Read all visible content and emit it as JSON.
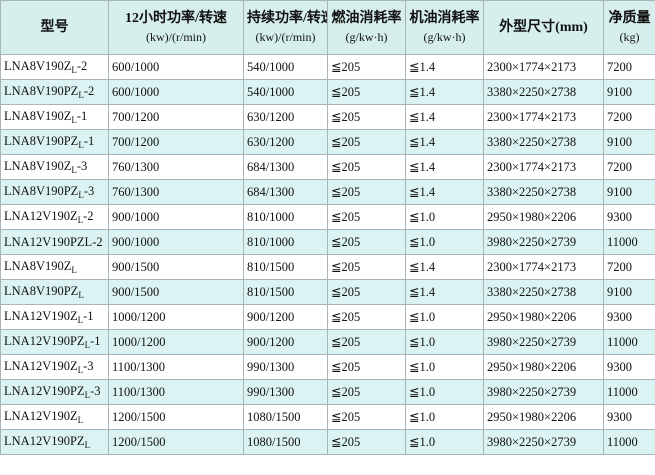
{
  "table": {
    "header": [
      [
        "型号"
      ],
      [
        "12小时功率/转速",
        "(kw)/(r/min)"
      ],
      [
        "持续功率/转速",
        "(kw)/(r/min)"
      ],
      [
        "燃油消耗率",
        "(g/kw·h)"
      ],
      [
        "机油消耗率",
        "(g/kw·h)"
      ],
      [
        "外型尺寸(mm)"
      ],
      [
        "净质量",
        "(kg)"
      ]
    ],
    "rows": [
      [
        {
          "base": "LNA8V190Z",
          "sub": "L",
          "suffix": "-2"
        },
        "600/1000",
        "540/1000",
        "≦205",
        "≦1.4",
        "2300×1774×2173",
        7200
      ],
      [
        {
          "base": "LNA8V190PZ",
          "sub": "L",
          "suffix": "-2"
        },
        "600/1000",
        "540/1000",
        "≦205",
        "≦1.4",
        "3380×2250×2738",
        9100
      ],
      [
        {
          "base": "LNA8V190Z",
          "sub": "L",
          "suffix": "-1"
        },
        "700/1200",
        "630/1200",
        "≦205",
        "≦1.4",
        "2300×1774×2173",
        7200
      ],
      [
        {
          "base": "LNA8V190PZ",
          "sub": "L",
          "suffix": "-1"
        },
        "700/1200",
        "630/1200",
        "≦205",
        "≦1.4",
        "3380×2250×2738",
        9100
      ],
      [
        {
          "base": "LNA8V190Z",
          "sub": "L",
          "suffix": "-3"
        },
        "760/1300",
        "684/1300",
        "≦205",
        "≦1.4",
        "2300×1774×2173",
        7200
      ],
      [
        {
          "base": "LNA8V190PZ",
          "sub": "L",
          "suffix": "-3"
        },
        "760/1300",
        "684/1300",
        "≦205",
        "≦1.4",
        "3380×2250×2738",
        9100
      ],
      [
        {
          "base": "LNA12V190Z",
          "sub": "L",
          "suffix": "-2"
        },
        "900/1000",
        "810/1000",
        "≦205",
        "≦1.0",
        "2950×1980×2206",
        9300
      ],
      [
        {
          "base": "LNA12V190PZL-2"
        },
        "900/1000",
        "810/1000",
        "≦205",
        "≦1.0",
        "3980×2250×2739",
        11000
      ],
      [
        {
          "base": "LNA8V190Z",
          "sub": "L"
        },
        "900/1500",
        "810/1500",
        "≦205",
        "≦1.4",
        "2300×1774×2173",
        7200
      ],
      [
        {
          "base": "LNA8V190PZ",
          "sub": "L"
        },
        "900/1500",
        "810/1500",
        "≦205",
        "≦1.4",
        "3380×2250×2738",
        9100
      ],
      [
        {
          "base": "LNA12V190Z",
          "sub": "L",
          "suffix": "-1"
        },
        "1000/1200",
        "900/1200",
        "≦205",
        "≦1.0",
        "2950×1980×2206",
        9300
      ],
      [
        {
          "base": "LNA12V190PZ",
          "sub": "L",
          "suffix": "-1"
        },
        "1000/1200",
        "900/1200",
        "≦205",
        "≦1.0",
        "3980×2250×2739",
        11000
      ],
      [
        {
          "base": "LNA12V190Z",
          "sub": "L",
          "suffix": "-3"
        },
        "1100/1300",
        "990/1300",
        "≦205",
        "≦1.0",
        "2950×1980×2206",
        9300
      ],
      [
        {
          "base": "LNA12V190PZ",
          "sub": "L",
          "suffix": "-3"
        },
        "1100/1300",
        "990/1300",
        "≦205",
        "≦1.0",
        "3980×2250×2739",
        11000
      ],
      [
        {
          "base": "LNA12V190Z",
          "sub": "L"
        },
        "1200/1500",
        "1080/1500",
        "≦205",
        "≦1.0",
        "2950×1980×2206",
        9300
      ],
      [
        {
          "base": "LNA12V190PZ",
          "sub": "L"
        },
        "1200/1500",
        "1080/1500",
        "≦205",
        "≦1.0",
        "3980×2250×2739",
        11000
      ]
    ]
  }
}
